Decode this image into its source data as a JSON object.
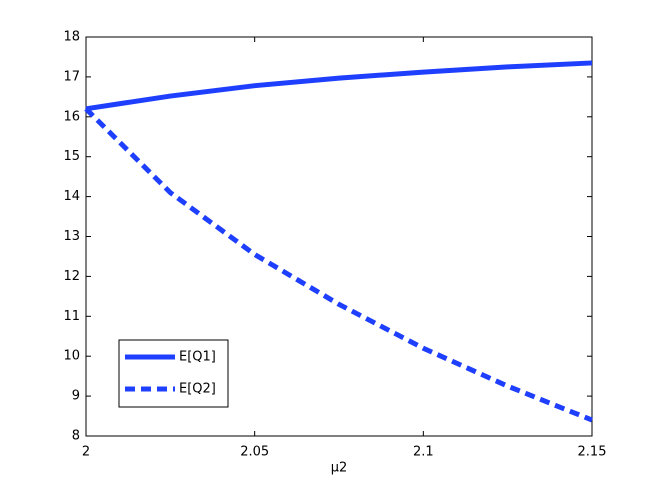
{
  "chart_data": {
    "type": "line",
    "x_label": "μ2",
    "x": [
      2,
      2.025,
      2.05,
      2.075,
      2.1,
      2.125,
      2.15
    ],
    "series": [
      {
        "name": "E[Q1]",
        "color": "#1f3fff",
        "line_style": "solid",
        "values": [
          16.2,
          16.52,
          16.78,
          16.97,
          17.12,
          17.25,
          17.35
        ]
      },
      {
        "name": "E[Q2]",
        "color": "#1f3fff",
        "line_style": "dashed",
        "values": [
          16.2,
          14.1,
          12.55,
          11.3,
          10.2,
          9.25,
          8.4
        ]
      }
    ],
    "xlim": [
      2,
      2.15
    ],
    "xticks": [
      2,
      2.05,
      2.1,
      2.15
    ],
    "ylim": [
      8,
      18
    ],
    "yticks": [
      8,
      9,
      10,
      11,
      12,
      13,
      14,
      15,
      16,
      17,
      18
    ],
    "grid": false,
    "legend_position": "lower-left"
  }
}
